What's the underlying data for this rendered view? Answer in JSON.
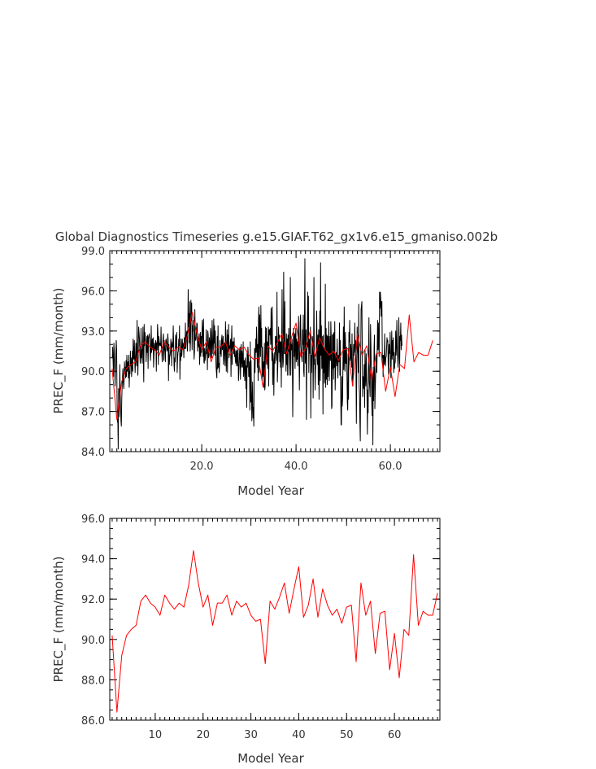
{
  "title": "Global Diagnostics Timeseries g.e15.GIAF.T62_gx1v6.e15_gmaniso.002b",
  "chart_data": [
    {
      "type": "line",
      "xlabel": "Model Year",
      "ylabel": "PREC_F (mm/month)",
      "xlim": [
        0.5,
        70.5
      ],
      "ylim": [
        84.0,
        99.0
      ],
      "xticks": [
        20,
        40,
        60
      ],
      "xtick_labels": [
        "20.0",
        "40.0",
        "60.0"
      ],
      "yticks": [
        84,
        87,
        90,
        93,
        96,
        99
      ],
      "ytick_labels": [
        "84.0",
        "87.0",
        "90.0",
        "93.0",
        "96.0",
        "99.0"
      ],
      "grid": false,
      "series": [
        {
          "color": "#000000",
          "values_monthly": [
            91.0,
            91.8,
            90.7,
            89.6,
            92.1,
            91.5,
            90.4,
            88.9,
            90.2,
            91.3,
            92.3,
            91.6,
            88.1,
            86.2,
            86.4,
            84.2,
            88.7,
            86.6,
            87.3,
            90.5,
            88.6,
            87.4,
            86.3,
            85.9,
            87.9,
            88.9,
            89.6,
            90.2,
            89.2,
            88.7,
            89.4,
            90.7,
            89.8,
            90.3,
            89.5,
            90.8,
            89.6,
            91.2,
            90.0,
            90.6,
            90.7,
            89.5,
            91.2,
            88.8,
            90.0,
            89.8,
            91.5,
            90.4,
            91.0,
            89.6,
            90.3,
            91.5,
            90.0,
            92.4,
            91.1,
            90.9,
            92.3,
            91.1,
            89.9,
            90.8,
            92.1,
            91.0,
            90.4,
            93.8,
            91.0,
            89.7,
            91.3,
            93.3,
            92.9,
            92.4,
            91.3,
            90.6,
            91.1,
            93.2,
            91.0,
            91.6,
            90.6,
            92.1,
            93.3,
            90.8,
            89.2,
            93.5,
            91.9,
            92.9,
            92.5,
            92.1,
            90.7,
            91.6,
            92.6,
            91.4,
            92.7,
            90.2,
            92.5,
            92.6,
            92.8,
            92.4,
            91.5,
            90.8,
            91.6,
            93.4,
            91.4,
            92.1,
            92.4,
            91.6,
            92.5,
            90.3,
            91.1,
            92.1,
            91.7,
            91.6,
            92.3,
            92.2,
            90.0,
            92.1,
            91.6,
            93.5,
            92.9,
            90.5,
            92.6,
            92.4,
            91.9,
            92.1,
            92.0,
            91.9,
            93.3,
            91.6,
            91.4,
            90.7,
            91.7,
            92.5,
            92.8,
            90.8,
            92.3,
            91.8,
            91.5,
            90.7,
            92.3,
            92.4,
            92.0,
            91.5,
            91.6,
            92.8,
            92.4,
            89.3,
            92.0,
            90.5,
            91.1,
            91.2,
            91.5,
            92.4,
            92.0,
            90.4,
            91.9,
            92.2,
            91.8,
            93.4,
            92.2,
            90.5,
            90.0,
            91.0,
            90.7,
            92.7,
            91.7,
            92.1,
            92.9,
            89.9,
            90.9,
            91.4,
            91.5,
            92.4,
            91.9,
            93.4,
            89.4,
            91.3,
            90.8,
            92.4,
            91.1,
            91.2,
            92.4,
            91.7,
            92.1,
            91.9,
            91.0,
            92.5,
            91.7,
            91.7,
            93.6,
            91.7,
            92.3,
            92.9,
            93.0,
            91.5,
            92.5,
            96.1,
            93.3,
            94.3,
            92.1,
            95.2,
            91.5,
            92.2,
            95.3,
            93.8,
            95.1,
            91.6,
            93.4,
            93.0,
            93.8,
            92.6,
            90.9,
            91.4,
            94.6,
            92.5,
            92.3,
            92.4,
            92.9,
            93.6,
            93.5,
            91.5,
            92.5,
            92.2,
            91.8,
            92.8,
            90.5,
            91.5,
            92.9,
            91.1,
            92.6,
            91.4,
            92.8,
            93.8,
            92.7,
            91.1,
            93.9,
            90.7,
            90.6,
            91.7,
            90.8,
            91.1,
            91.6,
            93.1,
            91.3,
            91.4,
            90.1,
            93.0,
            92.7,
            91.0,
            91.5,
            92.5,
            91.9,
            91.1,
            93.2,
            92.9,
            91.0,
            91.0,
            93.8,
            92.5,
            91.3,
            91.7,
            93.9,
            92.1,
            93.4,
            91.2,
            93.0,
            91.6,
            90.3,
            89.9,
            89.5,
            92.6,
            90.2,
            93.4,
            90.3,
            90.6,
            89.9,
            90.6,
            92.3,
            91.3,
            91.8,
            91.1,
            92.4,
            92.7,
            91.6,
            92.1,
            92.6,
            90.5,
            90.9,
            92.1,
            92.1,
            90.4,
            93.7,
            92.1,
            90.0,
            91.6,
            93.1,
            89.9,
            92.7,
            91.5,
            93.5,
            91.0,
            91.9,
            91.7,
            92.1,
            92.4,
            89.6,
            92.2,
            93.4,
            90.5,
            92.2,
            91.7,
            92.2,
            91.3,
            92.5,
            91.1,
            91.6,
            90.8,
            90.6,
            91.5,
            90.4,
            91.6,
            91.1,
            90.4,
            91.6,
            89.3,
            89.9,
            90.7,
            91.6,
            91.8,
            89.4,
            91.0,
            92.0,
            90.3,
            91.5,
            90.9,
            90.3,
            92.2,
            89.6,
            90.7,
            90.8,
            89.3,
            91.0,
            90.7,
            88.7,
            90.4,
            87.3,
            91.4,
            90.3,
            91.8,
            91.3,
            89.6,
            89.6,
            90.7,
            87.1,
            92.2,
            87.7,
            90.8,
            88.6,
            86.3,
            87.8,
            89.2,
            86.5,
            87.3,
            85.9,
            89.6,
            91.7,
            89.9,
            91.3,
            92.4,
            91.4,
            93.3,
            92.0,
            90.3,
            92.0,
            89.3,
            93.9,
            94.8,
            89.9,
            94.2,
            93.1,
            91.1,
            94.9,
            91.8,
            93.2,
            89.3,
            91.8,
            89.9,
            89.6,
            90.7,
            88.8,
            92.1,
            88.6,
            89.0,
            93.3,
            91.0,
            93.2,
            90.5,
            92.2,
            92.0,
            90.2,
            93.3,
            88.9,
            93.1,
            93.1,
            92.7,
            93.2,
            92.0,
            94.7,
            93.3,
            90.8,
            94.8,
            89.0,
            91.3,
            90.8,
            88.2,
            90.5,
            91.4,
            90.6,
            92.6,
            92.6,
            91.5,
            90.8,
            95.9,
            89.2,
            90.4,
            91.5,
            93.3,
            91.4,
            92.7,
            90.7,
            92.2,
            90.3,
            92.2,
            88.8,
            92.4,
            96.1,
            91.2,
            90.3,
            90.7,
            97.4,
            92.7,
            91.3,
            95.2,
            91.3,
            91.7,
            90.0,
            92.8,
            90.5,
            92.4,
            89.7,
            92.7,
            91.5,
            93.2,
            89.7,
            91.1,
            91.9,
            97.0,
            89.7,
            92.0,
            91.6,
            92.4,
            91.9,
            86.6,
            89.4,
            93.2,
            92.5,
            91.1,
            92.8,
            90.2,
            92.5,
            93.2,
            90.7,
            92.4,
            90.9,
            92.2,
            90.4,
            92.5,
            94.1,
            91.5,
            88.6,
            91.4,
            93.6,
            94.2,
            91.9,
            91.3,
            91.0,
            90.7,
            93.1,
            92.0,
            94.2,
            90.0,
            89.6,
            94.0,
            98.4,
            90.6,
            91.5,
            93.1,
            86.4,
            91.6,
            91.6,
            95.9,
            91.8,
            95.6,
            89.9,
            92.2,
            92.4,
            91.3,
            93.3,
            86.5,
            91.2,
            89.9,
            91.2,
            92.6,
            92.2,
            88.0,
            91.3,
            97.0,
            90.5,
            90.9,
            88.6,
            90.1,
            90.4,
            91.9,
            94.5,
            91.4,
            90.5,
            92.7,
            89.0,
            93.1,
            87.9,
            91.1,
            94.5,
            89.3,
            98.1,
            91.2,
            93.4,
            90.2,
            90.4,
            92.6,
            86.8,
            92.7,
            89.9,
            91.7,
            89.1,
            89.6,
            96.5,
            88.8,
            93.2,
            89.4,
            92.7,
            89.0,
            92.6,
            89.6,
            91.9,
            93.7,
            89.3,
            91.3,
            92.6,
            90.8,
            93.7,
            92.5,
            87.2,
            87.4,
            92.7,
            90.2,
            92.8,
            89.4,
            92.9,
            90.3,
            93.7,
            88.6,
            90.1,
            91.3,
            91.4,
            90.4,
            92.4,
            90.7,
            89.5,
            91.2,
            90.9,
            90.7,
            93.6,
            89.7,
            92.3,
            88.7,
            86.0,
            86.0,
            89.6,
            87.4,
            88.0,
            91.0,
            93.3,
            90.1,
            94.8,
            91.0,
            90.0,
            92.9,
            90.6,
            90.6,
            91.8,
            89.9,
            87.7,
            87.1,
            91.3,
            87.9,
            92.9,
            92.2,
            93.8,
            90.8,
            91.1,
            92.0,
            90.7,
            90.3,
            92.8,
            89.6,
            88.9,
            90.9,
            92.0,
            91.2,
            91.9,
            93.6,
            91.4,
            92.3,
            90.3,
            86.1,
            90.1,
            93.3,
            91.8,
            91.3,
            89.9,
            95.0,
            88.9,
            88.3,
            86.2,
            84.8,
            90.5,
            94.6,
            94.9,
            95.2,
            91.8,
            88.1,
            89.6,
            89.5,
            88.7,
            90.5,
            87.3,
            91.6,
            89.6,
            88.9,
            91.3,
            89.7,
            88.4,
            85.3,
            88.6,
            86.9,
            91.3,
            94.0,
            89.2,
            88.8,
            88.1,
            93.5,
            92.0,
            90.1,
            88.0,
            86.7,
            89.8,
            84.5,
            90.3,
            87.8,
            91.7,
            92.7,
            87.2,
            88.6,
            89.7,
            90.4,
            91.2,
            89.9,
            91.7,
            93.8,
            91.6,
            93.6,
            92.0,
            91.1,
            95.9,
            94.7,
            95.9,
            95.4,
            94.1,
            95.2,
            95.2,
            91.0,
            91.2,
            89.6,
            91.2,
            90.7,
            90.5,
            92.8,
            91.0,
            90.4,
            91.0,
            91.1,
            91.8,
            92.5,
            92.2,
            92.3,
            90.5,
            89.8,
            92.0,
            91.3,
            91.4,
            92.9,
            90.3,
            89.5,
            91.5,
            93.0,
            90.9,
            92.3,
            91.2,
            92.5,
            89.9,
            91.4,
            90.2,
            90.6,
            90.7,
            93.0,
            91.2,
            91.9,
            93.8,
            91.5,
            91.1,
            90.3,
            91.4,
            94.0,
            92.2,
            90.0,
            92.6,
            92.3,
            93.6,
            91.6,
            92.7,
            91.9
          ]
        },
        {
          "color": "#ff0000",
          "values": [
            90.2,
            86.4,
            89.2,
            90.2,
            90.5,
            90.7,
            91.9,
            92.2,
            91.8,
            91.6,
            91.2,
            92.2,
            91.8,
            91.5,
            91.8,
            91.6,
            92.7,
            94.4,
            92.8,
            91.6,
            92.2,
            90.7,
            91.8,
            91.8,
            92.2,
            91.2,
            91.9,
            91.6,
            91.8,
            91.2,
            90.9,
            91.0,
            88.8,
            91.9,
            91.5,
            92.1,
            92.8,
            91.3,
            92.5,
            93.6,
            91.1,
            91.7,
            93.0,
            91.1,
            92.5,
            91.7,
            91.2,
            91.5,
            90.8,
            91.6,
            91.7,
            88.9,
            92.8,
            91.2,
            91.9,
            89.3,
            91.3,
            91.4,
            88.5,
            90.3,
            88.1,
            90.5,
            90.2,
            94.2,
            90.7,
            91.4,
            91.2,
            91.2,
            92.3
          ]
        }
      ]
    },
    {
      "type": "line",
      "xlabel": "Model Year",
      "ylabel": "PREC_F (mm/month)",
      "xlim": [
        0.5,
        69.5
      ],
      "ylim": [
        86.0,
        96.0
      ],
      "xticks": [
        10,
        20,
        30,
        40,
        50,
        60
      ],
      "xtick_labels": [
        "10",
        "20",
        "30",
        "40",
        "50",
        "60"
      ],
      "yticks": [
        86,
        88,
        90,
        92,
        94,
        96
      ],
      "ytick_labels": [
        "86.0",
        "88.0",
        "90.0",
        "92.0",
        "94.0",
        "96.0"
      ],
      "grid": false,
      "series": [
        {
          "color": "#ff0000",
          "values": [
            90.2,
            86.4,
            89.2,
            90.2,
            90.5,
            90.7,
            91.9,
            92.2,
            91.8,
            91.6,
            91.2,
            92.2,
            91.8,
            91.5,
            91.8,
            91.6,
            92.7,
            94.4,
            92.8,
            91.6,
            92.2,
            90.7,
            91.8,
            91.8,
            92.2,
            91.2,
            91.9,
            91.6,
            91.8,
            91.2,
            90.9,
            91.0,
            88.8,
            91.9,
            91.5,
            92.1,
            92.8,
            91.3,
            92.5,
            93.6,
            91.1,
            91.7,
            93.0,
            91.1,
            92.5,
            91.7,
            91.2,
            91.5,
            90.8,
            91.6,
            91.7,
            88.9,
            92.8,
            91.2,
            91.9,
            89.3,
            91.3,
            91.4,
            88.5,
            90.3,
            88.1,
            90.5,
            90.2,
            94.2,
            90.7,
            91.4,
            91.2,
            91.2,
            92.3
          ]
        }
      ]
    }
  ]
}
